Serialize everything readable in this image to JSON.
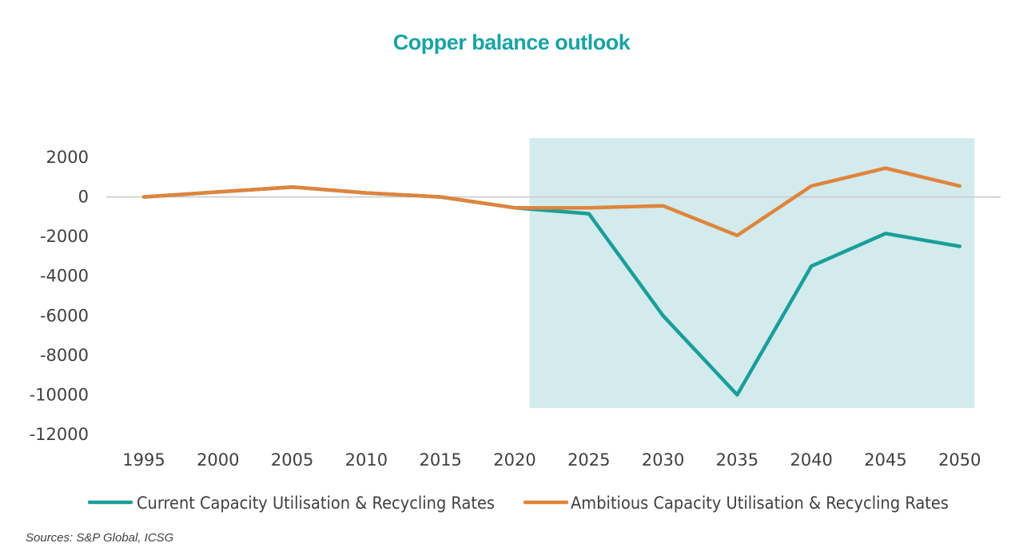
{
  "title": "Copper balance outlook",
  "source": "Sources: S&P Global, ICSG",
  "colors": {
    "current": "#1a9e9a",
    "ambitious": "#e0843c",
    "highlight": "#d3ebec",
    "zero": "#c8c8c8"
  },
  "chart_data": {
    "type": "line",
    "title": "Copper balance outlook",
    "xlabel": "",
    "ylabel": "",
    "x": [
      "1995",
      "2000",
      "2005",
      "2010",
      "2015",
      "2020",
      "2025",
      "2030",
      "2035",
      "2040",
      "2045",
      "2050"
    ],
    "y_ticks": [
      "2000",
      "0",
      "-2000",
      "-4000",
      "-6000",
      "-8000",
      "-10000",
      "-12000"
    ],
    "ylim": [
      -12000,
      2000
    ],
    "grid": false,
    "legend_position": "bottom",
    "highlight_region": {
      "from": 2021,
      "to": 2051
    },
    "series": [
      {
        "name": "Current Capacity Utilisation & Recycling Rates",
        "values": [
          0,
          250,
          500,
          200,
          0,
          -550,
          -850,
          -6000,
          -10000,
          -3500,
          -1850,
          -2500
        ]
      },
      {
        "name": "Ambitious Capacity Utilisation & Recycling Rates",
        "values": [
          0,
          250,
          500,
          200,
          0,
          -550,
          -550,
          -450,
          -1950,
          550,
          1450,
          550
        ]
      }
    ]
  }
}
